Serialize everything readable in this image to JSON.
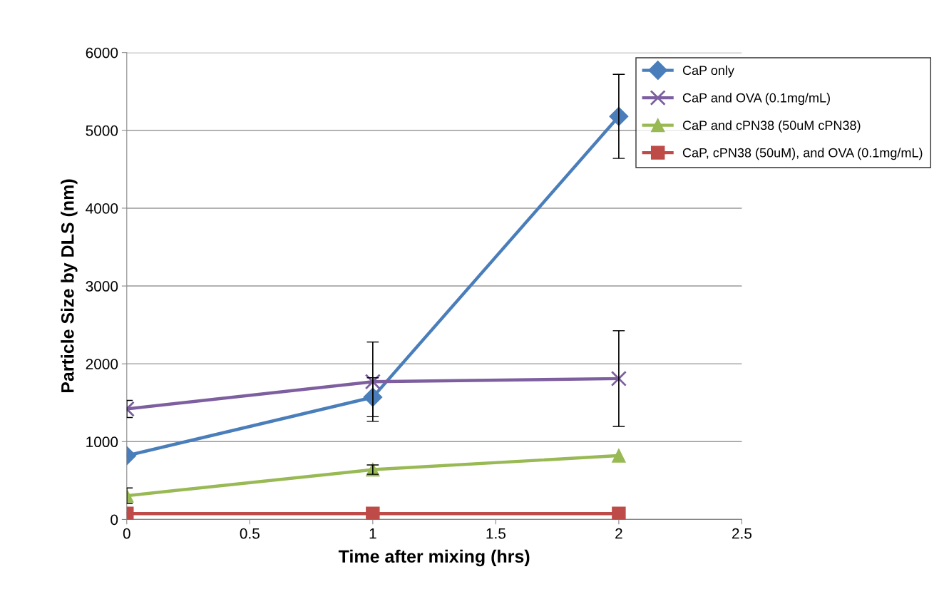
{
  "chart_data": {
    "type": "line",
    "xlabel": "Time after mixing (hrs)",
    "ylabel": "Particle Size by DLS (nm)",
    "x": [
      0,
      1,
      2
    ],
    "xlim": [
      0,
      2.5
    ],
    "xticks": [
      0,
      0.5,
      1,
      1.5,
      2,
      2.5
    ],
    "ylim": [
      0,
      6000
    ],
    "yticks": [
      0,
      1000,
      2000,
      3000,
      4000,
      5000,
      6000
    ],
    "grid": "y",
    "legend": "top right",
    "line_style": "solid",
    "series": [
      {
        "name": "CaP only",
        "color": "#4a7ebb",
        "marker": "diamond",
        "values": [
          820,
          1570,
          5180
        ],
        "errors": [
          null,
          250,
          540
        ]
      },
      {
        "name": "CaP and OVA (0.1mg/mL)",
        "color": "#7d5fa0",
        "marker": "cross",
        "values": [
          1420,
          1770,
          1810
        ],
        "errors": [
          110,
          510,
          615
        ]
      },
      {
        "name": "CaP and cPN38 (50uM cPN38)",
        "color": "#98b954",
        "marker": "triangle",
        "values": [
          305,
          640,
          820
        ],
        "errors": [
          100,
          60,
          null
        ]
      },
      {
        "name": "CaP, cPN38 (50uM), and OVA (0.1mg/mL)",
        "color": "#be4b48",
        "marker": "square",
        "values": [
          75,
          75,
          75
        ],
        "errors": [
          null,
          null,
          null
        ]
      }
    ]
  }
}
